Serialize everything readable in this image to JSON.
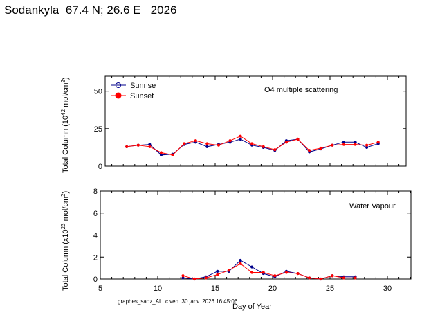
{
  "header": {
    "title": "Sodankyla  67.4 N; 26.6 E   2026"
  },
  "footer": {
    "graph_info": "graphes_saoz_ALLc ven. 30 janv. 2026 16:45:06"
  },
  "colors": {
    "sunrise": "#00008b",
    "sunset": "#ff0000",
    "axis": "#000000"
  },
  "chart_data": [
    {
      "type": "line",
      "annotation": "O4 multiple scattering",
      "ylabel_prefix": "Total Column (10",
      "ylabel_exp": "42",
      "ylabel_suffix": " mol/cm",
      "ylabel_sq": "2",
      "ylabel_close": ")",
      "xlim": [
        5,
        32
      ],
      "ylim": [
        0,
        60
      ],
      "yticks": [
        0,
        25,
        50
      ],
      "legend": "top-left",
      "legend_entries": [
        "Sunrise",
        "Sunset"
      ],
      "series": [
        {
          "name": "Sunrise",
          "marker": "open-circle",
          "x": [
            7.3,
            8.3,
            9.3,
            10.3,
            11.3,
            12.3,
            13.3,
            14.3,
            15.3,
            16.3,
            17.2,
            18.2,
            19.2,
            20.2,
            21.2,
            22.2,
            23.2,
            24.2,
            25.2,
            26.2,
            27.2,
            28.2,
            29.2
          ],
          "y": [
            13,
            14,
            14.5,
            7.5,
            8,
            14.5,
            16,
            13,
            14.5,
            16,
            18,
            14,
            12.5,
            10.5,
            17,
            18,
            9.5,
            11.5,
            14,
            16,
            16,
            12.5,
            15
          ]
        },
        {
          "name": "Sunset",
          "marker": "filled-circle",
          "x": [
            7.3,
            8.3,
            9.3,
            10.3,
            11.3,
            12.3,
            13.3,
            14.3,
            15.3,
            16.3,
            17.2,
            18.2,
            19.2,
            20.2,
            21.2,
            22.2,
            23.2,
            24.2,
            25.2,
            26.2,
            27.2,
            28.2,
            29.2
          ],
          "y": [
            13,
            14,
            13,
            9,
            7.5,
            15,
            17,
            15,
            14,
            17,
            20,
            15,
            13,
            11,
            16,
            18,
            10.5,
            12,
            14,
            14.5,
            14.5,
            14,
            16
          ]
        }
      ]
    },
    {
      "type": "line",
      "annotation": "Water Vapour",
      "ylabel_prefix": "Total Column (x10",
      "ylabel_exp": "23",
      "ylabel_suffix": " mol/cm",
      "ylabel_sq": "2",
      "ylabel_close": ")",
      "xlabel": "Day of Year",
      "xlim": [
        5,
        32
      ],
      "ylim": [
        0,
        8
      ],
      "yticks": [
        0,
        2,
        4,
        6,
        8
      ],
      "xticks": [
        5,
        10,
        15,
        20,
        25,
        30
      ],
      "series": [
        {
          "name": "Sunrise",
          "marker": "open-circle",
          "x": [
            12.2,
            13.2,
            14.2,
            15.2,
            16.2,
            17.2,
            18.2,
            19.2,
            20.2,
            21.2,
            22.2,
            23.2,
            24.2,
            25.2,
            26.2,
            27.2
          ],
          "y": [
            0.1,
            0.0,
            0.2,
            0.7,
            0.7,
            1.7,
            1.1,
            0.5,
            0.2,
            0.7,
            0.5,
            0.1,
            0.0,
            0.3,
            0.2,
            0.2
          ]
        },
        {
          "name": "Sunset",
          "marker": "filled-circle",
          "x": [
            12.2,
            13.2,
            14.2,
            15.2,
            16.2,
            17.2,
            18.2,
            19.2,
            20.2,
            21.2,
            22.2,
            23.2,
            24.2,
            25.2,
            26.2,
            27.2
          ],
          "y": [
            0.3,
            0.0,
            0.1,
            0.4,
            0.8,
            1.4,
            0.6,
            0.6,
            0.3,
            0.6,
            0.5,
            0.1,
            0.0,
            0.3,
            0.1,
            0.1
          ]
        }
      ]
    }
  ]
}
